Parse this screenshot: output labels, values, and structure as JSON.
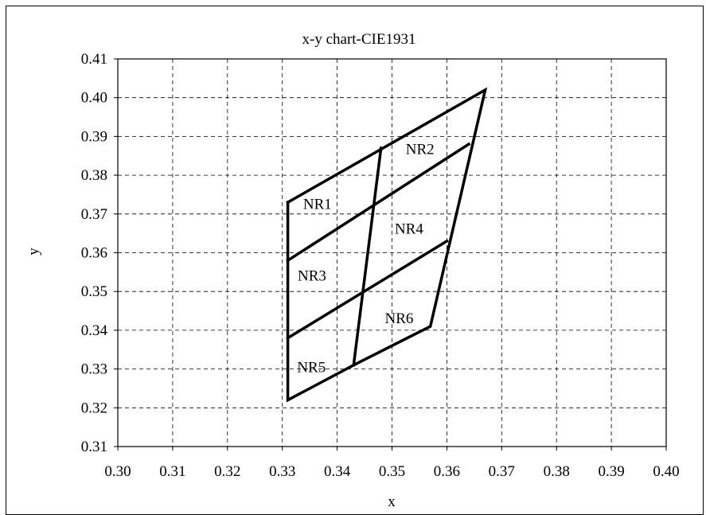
{
  "chart_data": {
    "type": "line",
    "title": "x-y chart-CIE1931",
    "xlabel": "x",
    "ylabel": "y",
    "xlim": [
      0.3,
      0.4
    ],
    "ylim": [
      0.31,
      0.41
    ],
    "xticks": [
      "0.30",
      "0.31",
      "0.32",
      "0.33",
      "0.34",
      "0.35",
      "0.36",
      "0.37",
      "0.38",
      "0.39",
      "0.40"
    ],
    "yticks": [
      "0.31",
      "0.32",
      "0.33",
      "0.34",
      "0.35",
      "0.36",
      "0.37",
      "0.38",
      "0.39",
      "0.40",
      "0.41"
    ],
    "grid": true,
    "line_color": "#000000",
    "grid_color": "#000000",
    "lines": [
      {
        "x": [
          0.331,
          0.367,
          0.357,
          0.343,
          0.331,
          0.331
        ],
        "y": [
          0.373,
          0.402,
          0.341,
          0.331,
          0.322,
          0.373
        ]
      },
      {
        "x": [
          0.331,
          0.364
        ],
        "y": [
          0.358,
          0.388
        ]
      },
      {
        "x": [
          0.331,
          0.36
        ],
        "y": [
          0.338,
          0.363
        ]
      },
      {
        "x": [
          0.348,
          0.343
        ],
        "y": [
          0.387,
          0.331
        ]
      }
    ],
    "annotations": [
      {
        "text": "NR1",
        "x": 0.3338,
        "y": 0.3713
      },
      {
        "text": "NR2",
        "x": 0.3525,
        "y": 0.3855
      },
      {
        "text": "NR3",
        "x": 0.3328,
        "y": 0.3528
      },
      {
        "text": "NR4",
        "x": 0.3505,
        "y": 0.3649
      },
      {
        "text": "NR5",
        "x": 0.3327,
        "y": 0.3292
      },
      {
        "text": "NR6",
        "x": 0.3487,
        "y": 0.3418
      }
    ]
  }
}
